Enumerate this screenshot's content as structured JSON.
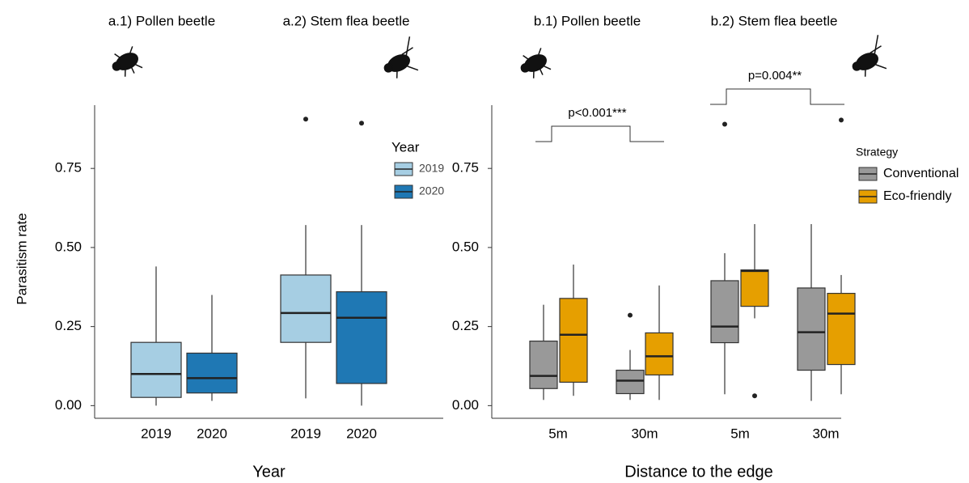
{
  "y_label": "Parasitism rate",
  "chart_data": [
    {
      "type": "box",
      "x_label": "Year",
      "groups": [
        "a.1) Pollen beetle",
        "a.2) Stem flea beetle"
      ],
      "legend_title": "Year",
      "ylim": [
        -0.04,
        0.95
      ],
      "yticks": [
        {
          "value": 0,
          "label": "0.00"
        },
        {
          "value": 0.25,
          "label": "0.25"
        },
        {
          "value": 0.5,
          "label": "0.50"
        },
        {
          "value": 0.75,
          "label": "0.75"
        }
      ],
      "series": [
        {
          "name": "2019",
          "color": "#a6cee3",
          "boxes": [
            {
              "min": 0.0,
              "q1": 0.026,
              "median": 0.1,
              "q3": 0.2,
              "max": 0.44,
              "outliers": []
            },
            {
              "min": 0.023,
              "q1": 0.2,
              "median": 0.293,
              "q3": 0.413,
              "max": 0.571,
              "outliers": [
                0.906
              ]
            }
          ]
        },
        {
          "name": "2020",
          "color": "#1f78b4",
          "boxes": [
            {
              "min": 0.015,
              "q1": 0.04,
              "median": 0.087,
              "q3": 0.166,
              "max": 0.35,
              "outliers": []
            },
            {
              "min": 0.0,
              "q1": 0.07,
              "median": 0.278,
              "q3": 0.36,
              "max": 0.571,
              "outliers": [
                0.893
              ]
            }
          ]
        }
      ]
    },
    {
      "type": "box",
      "x_label": "Distance to the edge",
      "groups": [
        "b.1) Pollen beetle",
        "b.2) Stem flea beetle"
      ],
      "categories": [
        "5m",
        "30m",
        "5m",
        "30m"
      ],
      "legend_title": "Strategy",
      "ylim": [
        -0.04,
        0.95
      ],
      "yticks": [
        {
          "value": 0,
          "label": "0.00"
        },
        {
          "value": 0.25,
          "label": "0.25"
        },
        {
          "value": 0.5,
          "label": "0.50"
        },
        {
          "value": 0.75,
          "label": "0.75"
        }
      ],
      "annotations": [
        "p<0.001***",
        "p=0.004**"
      ],
      "series": [
        {
          "name": "Conventional",
          "color": "#999999",
          "boxes": [
            {
              "min": 0.018,
              "q1": 0.054,
              "median": 0.094,
              "q3": 0.204,
              "max": 0.319,
              "outliers": []
            },
            {
              "min": 0.018,
              "q1": 0.038,
              "median": 0.079,
              "q3": 0.112,
              "max": 0.176,
              "outliers": [
                0.286
              ]
            },
            {
              "min": 0.036,
              "q1": 0.199,
              "median": 0.25,
              "q3": 0.395,
              "max": 0.482,
              "outliers": [
                0.89
              ]
            },
            {
              "min": 0.015,
              "q1": 0.112,
              "median": 0.232,
              "q3": 0.372,
              "max": 0.574,
              "outliers": []
            }
          ]
        },
        {
          "name": "Eco-friendly",
          "color": "#e69f00",
          "boxes": [
            {
              "min": 0.031,
              "q1": 0.074,
              "median": 0.224,
              "q3": 0.339,
              "max": 0.446,
              "outliers": []
            },
            {
              "min": 0.018,
              "q1": 0.097,
              "median": 0.156,
              "q3": 0.23,
              "max": 0.38,
              "outliers": []
            },
            {
              "min": 0.276,
              "q1": 0.314,
              "median": 0.426,
              "q3": 0.429,
              "max": 0.574,
              "outliers": [
                0.031
              ]
            },
            {
              "min": 0.036,
              "q1": 0.13,
              "median": 0.291,
              "q3": 0.355,
              "max": 0.413,
              "outliers": [
                0.903
              ]
            }
          ]
        }
      ]
    }
  ]
}
